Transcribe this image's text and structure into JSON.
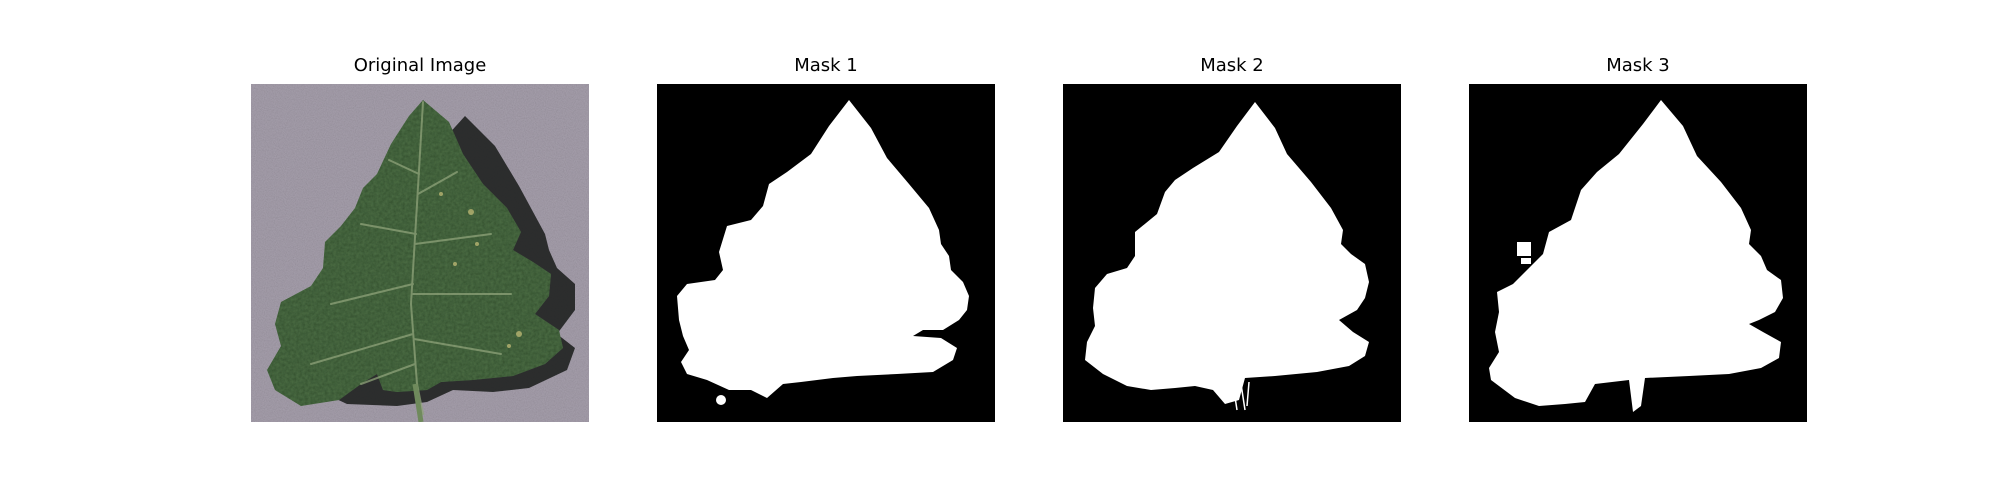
{
  "panels": [
    {
      "title": "Original Image",
      "kind": "photo"
    },
    {
      "title": "Mask 1",
      "kind": "mask"
    },
    {
      "title": "Mask 2",
      "kind": "mask"
    },
    {
      "title": "Mask 3",
      "kind": "mask"
    }
  ],
  "colors": {
    "background": "#ffffff",
    "mask_background": "#000000",
    "mask_foreground": "#ffffff",
    "photo_background": "#a69fac",
    "leaf_fill": "#4c6e45",
    "leaf_vein": "#8fa37a",
    "leaf_shadow": "#1f2120"
  }
}
